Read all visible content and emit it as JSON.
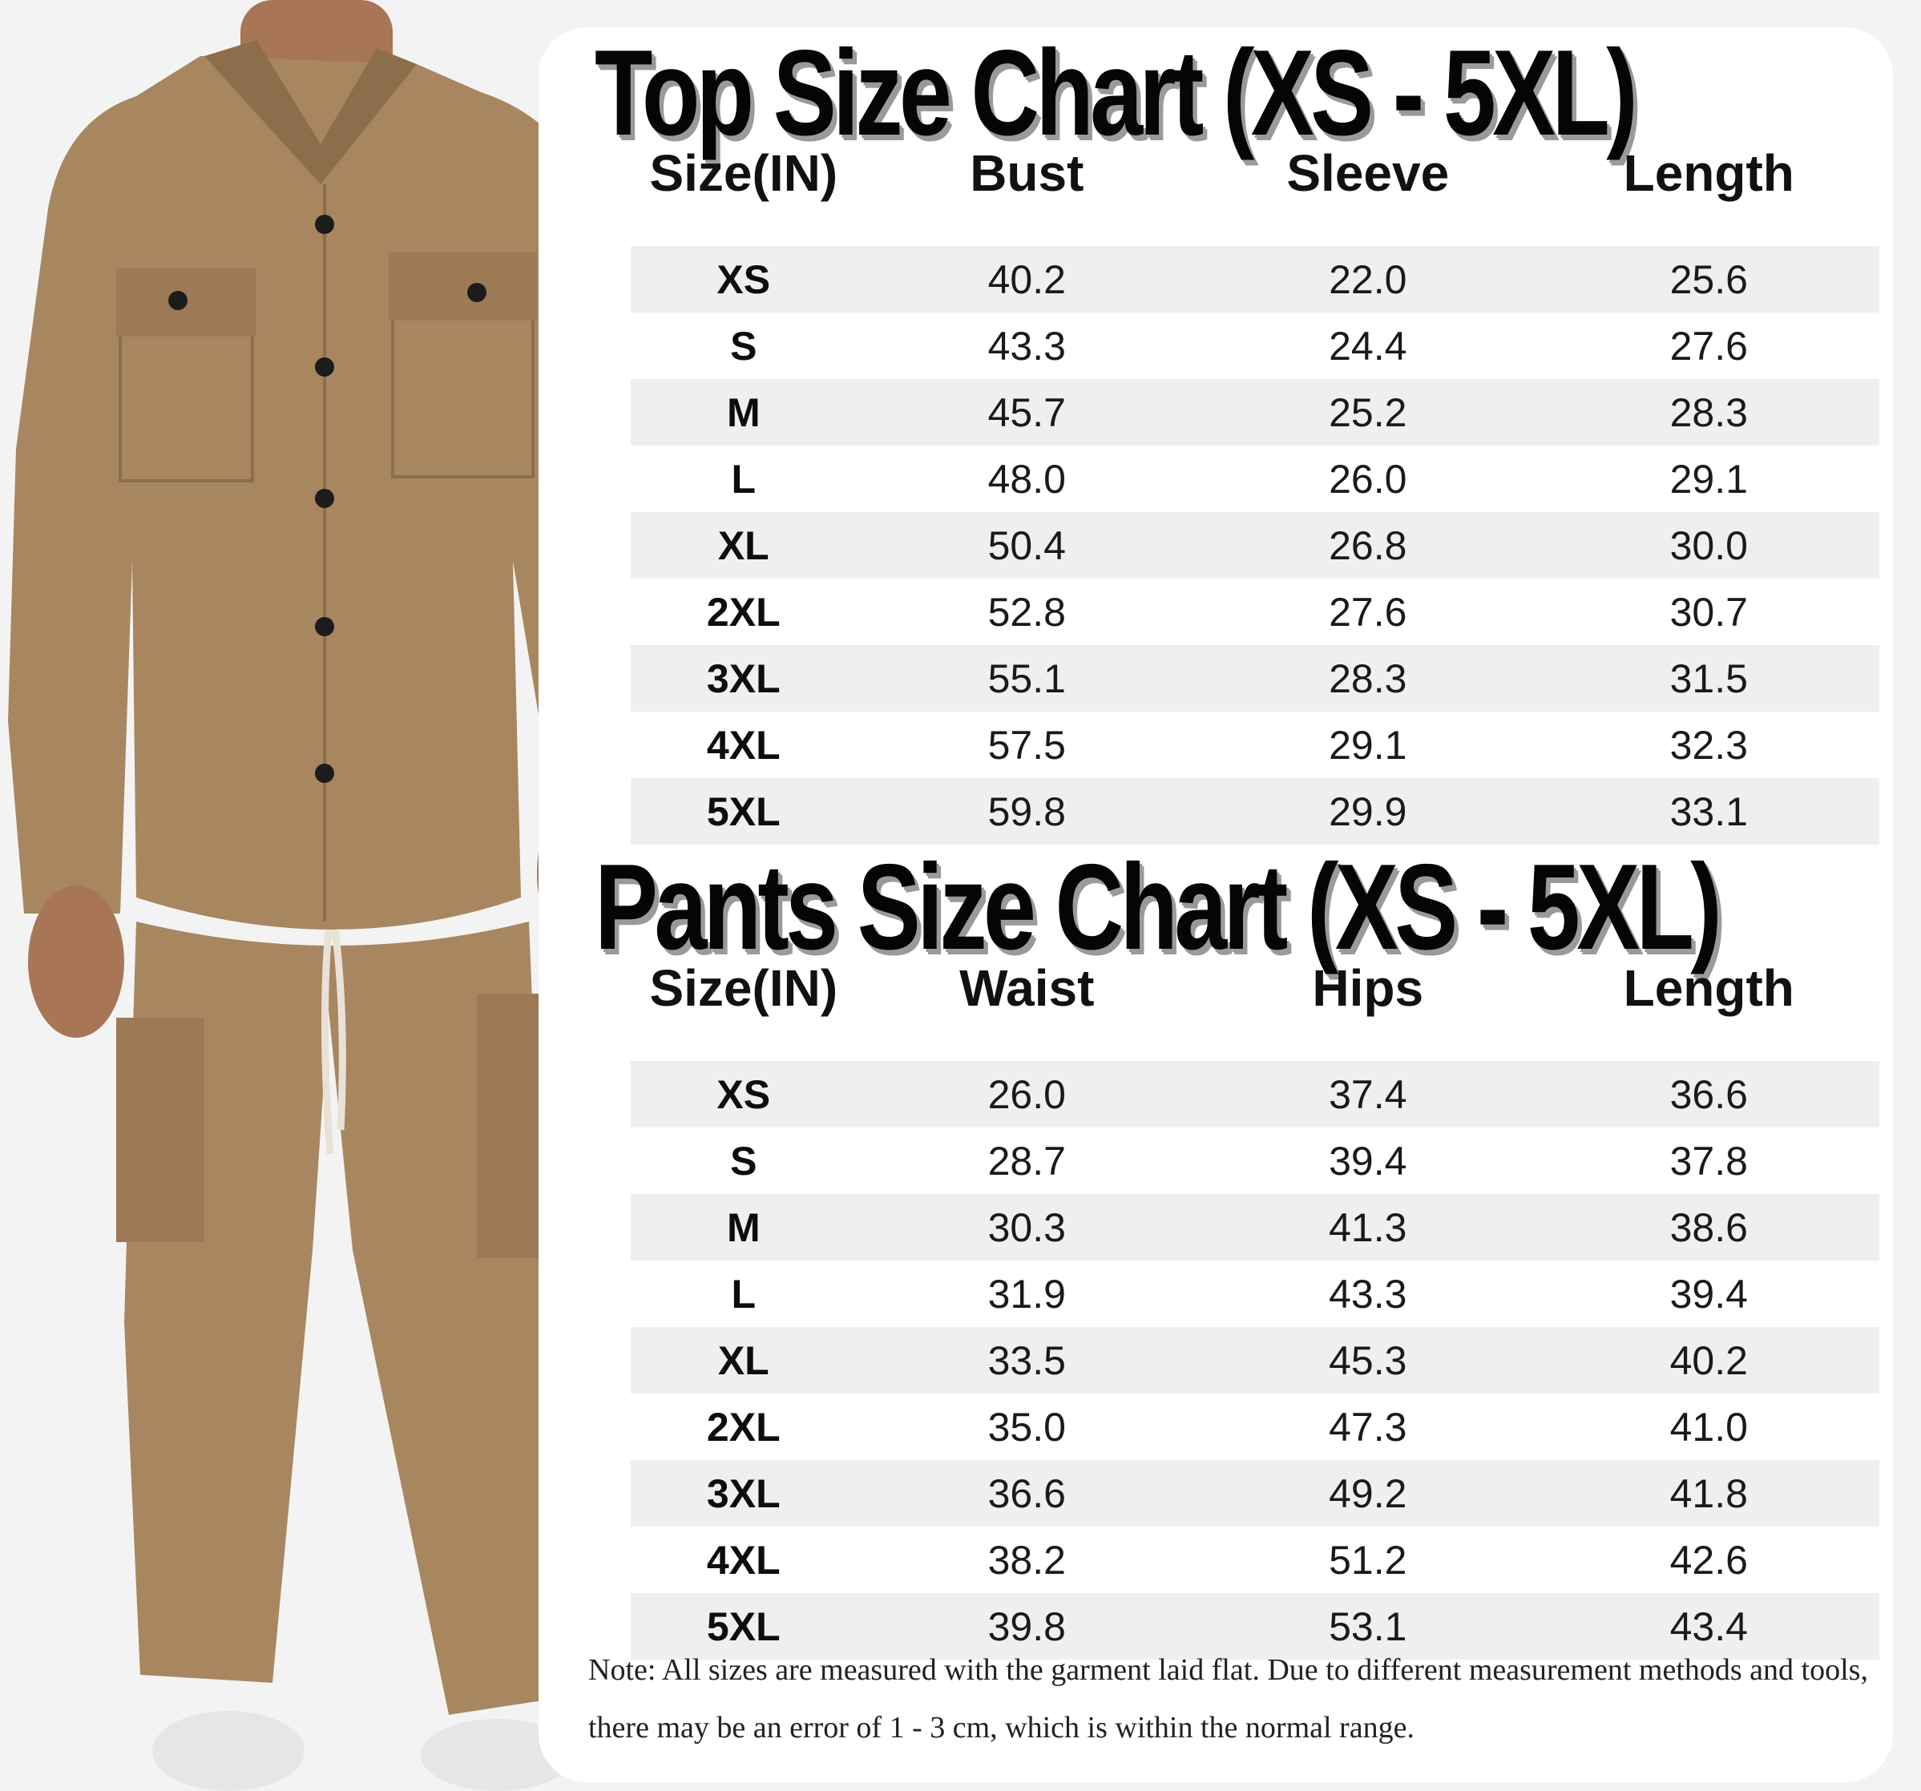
{
  "colors": {
    "fabric": "#a88660",
    "fabric_shadow": "#8c6d4c",
    "skin": "#a87557",
    "card": "#ffffff",
    "row_stripe": "#efefef",
    "title_shadow": "#9a9a9a"
  },
  "top_chart": {
    "title": "Top Size Chart (XS - 5XL)",
    "headers": [
      "Size(IN)",
      "Bust",
      "Sleeve",
      "Length"
    ],
    "rows": [
      {
        "size": "XS",
        "values": [
          "40.2",
          "22.0",
          "25.6"
        ]
      },
      {
        "size": "S",
        "values": [
          "43.3",
          "24.4",
          "27.6"
        ]
      },
      {
        "size": "M",
        "values": [
          "45.7",
          "25.2",
          "28.3"
        ]
      },
      {
        "size": "L",
        "values": [
          "48.0",
          "26.0",
          "29.1"
        ]
      },
      {
        "size": "XL",
        "values": [
          "50.4",
          "26.8",
          "30.0"
        ]
      },
      {
        "size": "2XL",
        "values": [
          "52.8",
          "27.6",
          "30.7"
        ]
      },
      {
        "size": "3XL",
        "values": [
          "55.1",
          "28.3",
          "31.5"
        ]
      },
      {
        "size": "4XL",
        "values": [
          "57.5",
          "29.1",
          "32.3"
        ]
      },
      {
        "size": "5XL",
        "values": [
          "59.8",
          "29.9",
          "33.1"
        ]
      }
    ]
  },
  "pants_chart": {
    "title": "Pants Size Chart (XS - 5XL)",
    "headers": [
      "Size(IN)",
      "Waist",
      "Hips",
      "Length"
    ],
    "rows": [
      {
        "size": "XS",
        "values": [
          "26.0",
          "37.4",
          "36.6"
        ]
      },
      {
        "size": "S",
        "values": [
          "28.7",
          "39.4",
          "37.8"
        ]
      },
      {
        "size": "M",
        "values": [
          "30.3",
          "41.3",
          "38.6"
        ]
      },
      {
        "size": "L",
        "values": [
          "31.9",
          "43.3",
          "39.4"
        ]
      },
      {
        "size": "XL",
        "values": [
          "33.5",
          "45.3",
          "40.2"
        ]
      },
      {
        "size": "2XL",
        "values": [
          "35.0",
          "47.3",
          "41.0"
        ]
      },
      {
        "size": "3XL",
        "values": [
          "36.6",
          "49.2",
          "41.8"
        ]
      },
      {
        "size": "4XL",
        "values": [
          "38.2",
          "51.2",
          "42.6"
        ]
      },
      {
        "size": "5XL",
        "values": [
          "39.8",
          "53.1",
          "43.4"
        ]
      }
    ]
  },
  "note": "Note: All sizes are measured with the garment laid flat. Due to different measurement methods and tools, there may be an error of 1 - 3 cm, which is within the normal range."
}
